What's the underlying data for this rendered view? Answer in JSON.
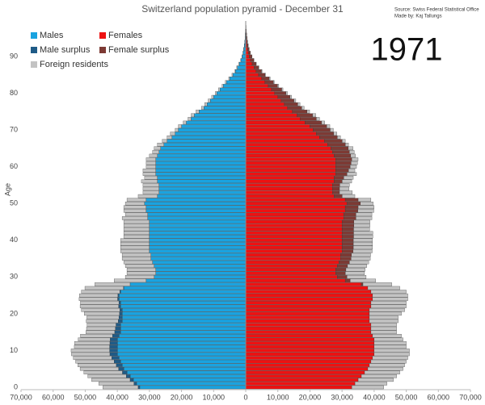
{
  "chart_data": {
    "type": "pyramid",
    "title": "Switzerland population pyramid - December 31",
    "source": "Source: Swiss Federal Statistical Office",
    "credit": "Made by: Kaj Tallungs",
    "year": "1971",
    "y_label": "Age",
    "categories": [
      0,
      null,
      null,
      null,
      null,
      null,
      null,
      null,
      null,
      null,
      10,
      null,
      null,
      null,
      null,
      null,
      null,
      null,
      null,
      null,
      20,
      null,
      null,
      null,
      null,
      null,
      null,
      null,
      null,
      null,
      30,
      null,
      null,
      null,
      null,
      null,
      null,
      null,
      null,
      null,
      40,
      null,
      null,
      null,
      null,
      null,
      null,
      null,
      null,
      null,
      50,
      null,
      null,
      null,
      null,
      null,
      null,
      null,
      null,
      null,
      60,
      null,
      null,
      null,
      null,
      null,
      null,
      null,
      null,
      null,
      70,
      null,
      null,
      null,
      null,
      null,
      null,
      null,
      null,
      null,
      80,
      null,
      null,
      null,
      null,
      null,
      null,
      null,
      null,
      null,
      90,
      null,
      null,
      null,
      null,
      null,
      null,
      null,
      null,
      null
    ],
    "xlim": [
      -70000,
      70000
    ],
    "xticks": [
      {
        "value": -70000,
        "label": "70,000"
      },
      {
        "value": -60000,
        "label": "60,000"
      },
      {
        "value": -50000,
        "label": "50,000"
      },
      {
        "value": -40000,
        "label": "40,000"
      },
      {
        "value": -30000,
        "label": "30,000"
      },
      {
        "value": -20000,
        "label": "20,000"
      },
      {
        "value": -10000,
        "label": "10,000"
      },
      0,
      {
        "value": 10000,
        "label": "10,000"
      },
      {
        "value": 20000,
        "label": "20,000"
      },
      {
        "value": 30000,
        "label": "30,000"
      },
      {
        "value": 40000,
        "label": "40,000"
      },
      {
        "value": 50000,
        "label": "50,000"
      },
      {
        "value": 60000,
        "label": "60,000"
      },
      {
        "value": 70000,
        "label": "70,000"
      }
    ],
    "series": [
      {
        "name": "Males",
        "color": "#1aa3e0",
        "side": "left",
        "values": [
          33000,
          34000,
          35000,
          36000,
          37000,
          38000,
          38500,
          39000,
          39500,
          40000,
          40000,
          40000,
          40000,
          40000,
          39500,
          39000,
          39000,
          39000,
          38500,
          38500,
          38500,
          38500,
          39000,
          39000,
          39500,
          39500,
          39000,
          38000,
          36000,
          31000,
          28500,
          28000,
          28000,
          28500,
          29000,
          29500,
          29500,
          30000,
          30000,
          30000,
          30000,
          30000,
          30000,
          30000,
          30000,
          30000,
          30500,
          30500,
          31000,
          31000,
          31500,
          31000,
          27500,
          27000,
          27000,
          27000,
          27500,
          27500,
          28000,
          28000,
          28000,
          28000,
          28000,
          27500,
          27000,
          26500,
          25500,
          24500,
          23000,
          22000,
          21000,
          20000,
          18500,
          17000,
          16000,
          14500,
          13000,
          12000,
          11000,
          10000,
          9000,
          8000,
          7000,
          6000,
          5000,
          4000,
          3200,
          2600,
          2000,
          1500,
          1100,
          800,
          600,
          400,
          300,
          200,
          150,
          100,
          60,
          40
        ]
      },
      {
        "name": "Females",
        "color": "#ee1111",
        "side": "right",
        "values": [
          33000,
          34000,
          35000,
          36000,
          37000,
          38000,
          38500,
          39000,
          39500,
          40000,
          40000,
          40000,
          40000,
          40000,
          39500,
          39000,
          39000,
          39000,
          38500,
          38500,
          38500,
          38500,
          39000,
          39000,
          39500,
          39500,
          39000,
          38000,
          36000,
          31000,
          28500,
          28000,
          28000,
          28500,
          29000,
          29500,
          29500,
          30000,
          30000,
          30000,
          30000,
          30000,
          30000,
          30000,
          30000,
          30000,
          30500,
          30500,
          31000,
          31000,
          31500,
          31000,
          27500,
          27000,
          27000,
          27000,
          27500,
          27500,
          28000,
          28000,
          28000,
          28000,
          28000,
          27500,
          27000,
          26500,
          25500,
          24500,
          23000,
          22000,
          21000,
          20000,
          18500,
          17000,
          16000,
          14500,
          13000,
          12000,
          11000,
          10000,
          9000,
          8000,
          7000,
          6000,
          5000,
          4000,
          3200,
          2600,
          2000,
          1500,
          1100,
          800,
          600,
          400,
          300,
          200,
          150,
          100,
          60,
          40
        ]
      },
      {
        "name": "Male surplus",
        "color": "#1f5b87",
        "side": "left",
        "values": [
          500,
          800,
          1000,
          1200,
          1400,
          1600,
          1800,
          2000,
          2200,
          2300,
          2400,
          2400,
          2300,
          2200,
          2000,
          1800,
          1600,
          1400,
          1200,
          1000,
          800,
          700,
          600,
          500,
          400,
          300,
          200,
          100,
          0,
          0,
          0,
          0,
          0,
          0,
          0,
          0,
          0,
          0,
          0,
          0,
          0,
          0,
          0,
          0,
          0,
          0,
          0,
          0,
          0,
          0,
          0,
          0,
          0,
          0,
          0,
          0,
          0,
          0,
          0,
          0,
          0,
          0,
          0,
          0,
          0,
          0,
          0,
          0,
          0,
          0,
          0,
          0,
          0,
          0,
          0,
          0,
          0,
          0,
          0,
          0,
          0,
          0,
          0,
          0,
          0,
          0,
          0,
          0,
          0,
          0,
          0,
          0,
          0,
          0,
          0,
          0,
          0,
          0,
          0,
          0
        ]
      },
      {
        "name": "Female surplus",
        "color": "#7d3a34",
        "side": "right",
        "values": [
          0,
          0,
          0,
          0,
          0,
          0,
          0,
          0,
          0,
          0,
          0,
          0,
          0,
          0,
          0,
          0,
          0,
          0,
          0,
          0,
          0,
          0,
          0,
          0,
          0,
          0,
          0,
          0,
          500,
          1500,
          3000,
          3000,
          3200,
          3200,
          3300,
          3300,
          3400,
          3400,
          3500,
          3500,
          3500,
          3600,
          3600,
          3600,
          3700,
          3700,
          3800,
          3800,
          3900,
          4000,
          4200,
          4000,
          2500,
          2200,
          2200,
          2300,
          2500,
          3000,
          3500,
          4000,
          4500,
          4800,
          5000,
          5200,
          5300,
          5400,
          5500,
          5500,
          5500,
          5400,
          5300,
          5200,
          5100,
          5000,
          4800,
          4600,
          4400,
          4200,
          4000,
          3800,
          3500,
          3200,
          2900,
          2600,
          2300,
          2000,
          1700,
          1400,
          1200,
          1000,
          800,
          600,
          450,
          350,
          250,
          180,
          120,
          80,
          50,
          30
        ]
      },
      {
        "name": "Foreign residents",
        "color": "#c3c3c3",
        "side": "both",
        "values": [
          11000,
          11000,
          12000,
          12000,
          12000,
          12000,
          12000,
          12000,
          12000,
          12000,
          12000,
          11000,
          11000,
          10000,
          10000,
          9000,
          9000,
          9000,
          10000,
          10000,
          11000,
          12000,
          12000,
          12000,
          12000,
          12000,
          12000,
          12000,
          11000,
          10000,
          9000,
          9000,
          9000,
          9000,
          9000,
          9000,
          9000,
          9000,
          9000,
          9000,
          9000,
          8000,
          8000,
          8000,
          8000,
          8000,
          8000,
          7000,
          7000,
          7000,
          6000,
          6000,
          6000,
          5000,
          5000,
          5000,
          5000,
          4000,
          4000,
          4000,
          3000,
          3000,
          3000,
          2500,
          2000,
          2000,
          2000,
          1500,
          1500,
          1500,
          1000,
          1000,
          1000,
          1000,
          1000,
          1000,
          800,
          800,
          700,
          600,
          500,
          500,
          400,
          400,
          300,
          300,
          200,
          200,
          150,
          100,
          100,
          80,
          60,
          40,
          30,
          20,
          10,
          10,
          5,
          5
        ],
        "values_right": [
          10000,
          10000,
          11000,
          11000,
          11000,
          11000,
          11000,
          11000,
          11000,
          11000,
          11000,
          10000,
          10000,
          9000,
          9000,
          8000,
          8000,
          8000,
          9000,
          9000,
          10000,
          11000,
          11000,
          11000,
          11000,
          11000,
          11000,
          10000,
          9000,
          8000,
          6000,
          6000,
          6000,
          6000,
          6000,
          6000,
          6000,
          6000,
          6000,
          6000,
          6000,
          6000,
          6000,
          5000,
          5000,
          5000,
          5000,
          5000,
          5000,
          5000,
          4000,
          4000,
          4000,
          4000,
          3000,
          3000,
          3000,
          3000,
          3000,
          2000,
          2000,
          2000,
          2000,
          1500,
          1500,
          1500,
          1000,
          1000,
          1000,
          1000,
          1000,
          1000,
          1000,
          1000,
          1000,
          800,
          800,
          700,
          600,
          500,
          500,
          400,
          400,
          300,
          300,
          200,
          200,
          150,
          100,
          100,
          80,
          60,
          40,
          30,
          20,
          15,
          10,
          5,
          5,
          5
        ]
      }
    ]
  }
}
